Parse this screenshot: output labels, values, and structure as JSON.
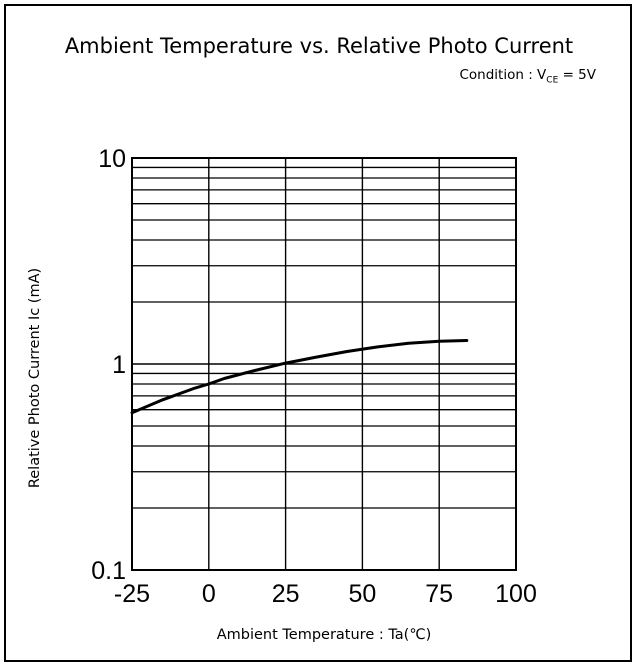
{
  "chart_data": {
    "type": "line",
    "title": "Ambient Temperature vs. Relative Photo Current",
    "subtitle_prefix": "Condition : V",
    "subtitle_subscript": "CE",
    "subtitle_suffix": " = 5V",
    "xlabel": "Ambient Temperature : Ta(℃)",
    "ylabel": "Relative Photo Current Ic (mA)",
    "xlim": [
      -25,
      100
    ],
    "ylim": [
      0.1,
      10
    ],
    "yscale": "log",
    "grid": true,
    "x_ticks": [
      -25,
      0,
      25,
      50,
      75,
      100
    ],
    "x_tick_labels": [
      "-25",
      "0",
      "25",
      "50",
      "75",
      "100"
    ],
    "y_ticks": [
      0.1,
      1,
      10
    ],
    "y_tick_labels": [
      "0.1",
      "1",
      "10"
    ],
    "series": [
      {
        "color": "#000000",
        "x": [
          -25,
          -15,
          -5,
          0,
          5,
          15,
          25,
          35,
          45,
          55,
          65,
          75,
          84
        ],
        "y": [
          0.58,
          0.67,
          0.76,
          0.8,
          0.85,
          0.93,
          1.01,
          1.08,
          1.15,
          1.21,
          1.26,
          1.29,
          1.3
        ]
      }
    ]
  }
}
